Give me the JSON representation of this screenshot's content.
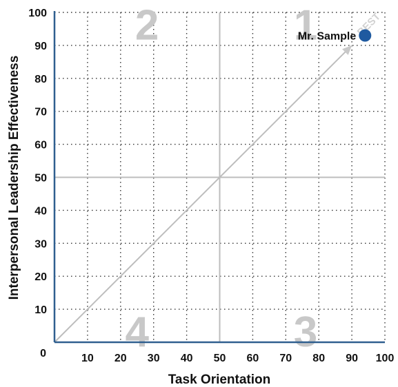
{
  "chart_data": {
    "type": "scatter",
    "title": "",
    "xlabel": "Task Orientation",
    "ylabel": "Interpersonal Leadership Effectiveness",
    "xlim": [
      0,
      100
    ],
    "ylim": [
      0,
      100
    ],
    "x_ticks": [
      "0",
      "10",
      "20",
      "30",
      "40",
      "50",
      "60",
      "70",
      "80",
      "90",
      "100"
    ],
    "y_ticks": [
      "10",
      "20",
      "30",
      "40",
      "50",
      "60",
      "70",
      "80",
      "90",
      "100"
    ],
    "grid": "dotted",
    "quadrant_lines": {
      "x": 50,
      "y": 50
    },
    "diagonal": {
      "from": [
        0,
        0
      ],
      "to": [
        90,
        90
      ],
      "label": "BEST"
    },
    "quadrants": [
      {
        "label": "1",
        "x": 76,
        "y": 96
      },
      {
        "label": "2",
        "x": 28,
        "y": 96
      },
      {
        "label": "3",
        "x": 76,
        "y": 3
      },
      {
        "label": "4",
        "x": 25,
        "y": 3
      }
    ],
    "points": [
      {
        "name": "Mr. Sample",
        "x": 94,
        "y": 93
      }
    ],
    "colors": {
      "axis": "#2f5f8f",
      "point": "#1f5aa0",
      "quadrant_line": "#bdbdbd",
      "grid": "#333333"
    }
  }
}
